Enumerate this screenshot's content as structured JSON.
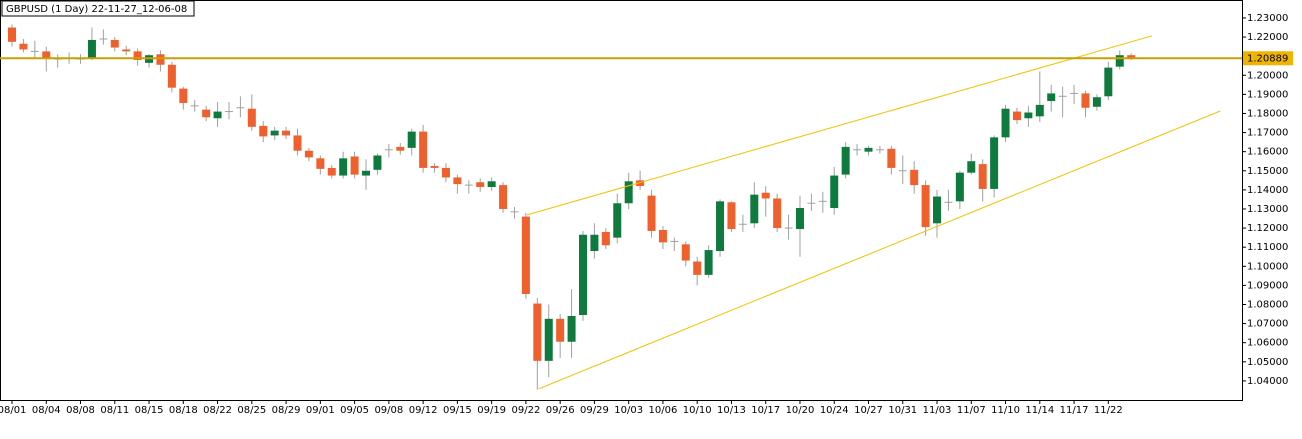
{
  "chart_data": {
    "type": "candlestick",
    "title": "GBPUSD (1 Day) 22-11-27_12-06-08",
    "categories": [
      "08/01",
      null,
      null,
      "08/04",
      null,
      null,
      "08/08",
      null,
      null,
      "08/11",
      null,
      null,
      "08/15",
      null,
      null,
      "08/18",
      null,
      null,
      "08/22",
      null,
      null,
      "08/25",
      null,
      null,
      "08/29",
      null,
      null,
      "09/01",
      null,
      null,
      "09/05",
      null,
      null,
      "09/08",
      null,
      null,
      "09/12",
      null,
      null,
      "09/15",
      null,
      null,
      "09/19",
      null,
      null,
      "09/22",
      null,
      null,
      "09/26",
      null,
      null,
      "09/29",
      null,
      null,
      "10/03",
      null,
      null,
      "10/06",
      null,
      null,
      "10/10",
      null,
      null,
      "10/13",
      null,
      null,
      "10/17",
      null,
      null,
      "10/20",
      null,
      null,
      "10/24",
      null,
      null,
      "10/27",
      null,
      null,
      "10/31",
      null,
      null,
      "11/03",
      null,
      null,
      "11/07",
      null,
      null,
      "11/10",
      null,
      null,
      "11/14",
      null,
      null,
      "11/17",
      null,
      null,
      "11/22",
      null,
      null
    ],
    "open": [
      1.225,
      1.2165,
      1.2125,
      1.2125,
      1.2085,
      1.209,
      1.2085,
      1.2085,
      1.219,
      1.2185,
      1.2135,
      1.2125,
      1.2065,
      1.211,
      1.2055,
      1.193,
      1.184,
      1.182,
      1.1775,
      1.181,
      1.183,
      1.1825,
      1.1735,
      1.1685,
      1.171,
      1.1685,
      1.1605,
      1.1565,
      1.1515,
      1.1475,
      1.1575,
      1.1475,
      1.1505,
      1.161,
      1.1625,
      1.162,
      1.1705,
      1.1525,
      1.1515,
      1.1465,
      1.1425,
      1.144,
      1.1415,
      1.1425,
      1.1285,
      1.126,
      1.0805,
      1.0505,
      1.0725,
      1.0605,
      1.0745,
      1.108,
      1.118,
      1.115,
      1.133,
      1.145,
      1.137,
      1.119,
      1.113,
      1.1115,
      1.1025,
      1.0955,
      1.108,
      1.1335,
      1.122,
      1.1225,
      1.1385,
      1.1355,
      1.12,
      1.1195,
      1.133,
      1.134,
      1.1305,
      1.148,
      1.161,
      1.16,
      1.161,
      1.1615,
      1.15,
      1.1505,
      1.1425,
      1.1225,
      1.1335,
      1.134,
      1.149,
      1.1535,
      1.1405,
      1.1675,
      1.181,
      1.1775,
      1.1785,
      1.1865,
      1.189,
      1.1905,
      1.1905,
      1.1835,
      1.189,
      1.2045,
      1.2105
    ],
    "high": [
      1.2265,
      1.219,
      1.218,
      1.215,
      1.211,
      1.212,
      1.211,
      1.225,
      1.224,
      1.22,
      1.2155,
      1.214,
      1.211,
      1.213,
      1.207,
      1.194,
      1.187,
      1.184,
      1.186,
      1.186,
      1.189,
      1.19,
      1.176,
      1.173,
      1.173,
      1.172,
      1.162,
      1.158,
      1.153,
      1.16,
      1.16,
      1.156,
      1.159,
      1.164,
      1.1645,
      1.172,
      1.174,
      1.154,
      1.154,
      1.148,
      1.145,
      1.146,
      1.1465,
      1.144,
      1.131,
      1.128,
      1.0835,
      1.08,
      1.075,
      1.088,
      1.1185,
      1.1225,
      1.12,
      1.138,
      1.149,
      1.15,
      1.14,
      1.121,
      1.115,
      1.113,
      1.105,
      1.111,
      1.135,
      1.134,
      1.127,
      1.144,
      1.142,
      1.138,
      1.127,
      1.137,
      1.138,
      1.139,
      1.152,
      1.165,
      1.164,
      1.163,
      1.163,
      1.163,
      1.158,
      1.155,
      1.145,
      1.14,
      1.14,
      1.15,
      1.159,
      1.156,
      1.1685,
      1.1845,
      1.183,
      1.184,
      1.202,
      1.195,
      1.194,
      1.195,
      1.192,
      1.19,
      1.207,
      1.213,
      1.2115
    ],
    "low": [
      1.215,
      1.212,
      1.209,
      1.202,
      1.204,
      1.206,
      1.206,
      1.208,
      1.216,
      1.2125,
      1.2105,
      1.205,
      1.204,
      1.202,
      1.191,
      1.182,
      1.181,
      1.176,
      1.173,
      1.177,
      1.178,
      1.171,
      1.165,
      1.166,
      1.1665,
      1.158,
      1.155,
      1.148,
      1.146,
      1.146,
      1.146,
      1.14,
      1.148,
      1.157,
      1.1585,
      1.158,
      1.149,
      1.149,
      1.144,
      1.138,
      1.138,
      1.139,
      1.1395,
      1.128,
      1.125,
      1.083,
      1.0355,
      1.042,
      1.052,
      1.052,
      1.0715,
      1.104,
      1.109,
      1.112,
      1.13,
      1.14,
      1.115,
      1.109,
      1.108,
      1.1,
      1.09,
      1.094,
      1.105,
      1.118,
      1.118,
      1.12,
      1.126,
      1.118,
      1.114,
      1.105,
      1.129,
      1.128,
      1.127,
      1.146,
      1.158,
      1.158,
      1.159,
      1.148,
      1.143,
      1.138,
      1.116,
      1.115,
      1.129,
      1.13,
      1.148,
      1.134,
      1.136,
      1.165,
      1.1745,
      1.173,
      1.1755,
      1.181,
      1.178,
      1.185,
      1.178,
      1.1815,
      1.187,
      1.203,
      1.208
    ],
    "close": [
      1.2175,
      1.2135,
      1.2125,
      1.2085,
      1.2085,
      1.209,
      1.2085,
      1.2185,
      1.219,
      1.2145,
      1.2125,
      1.208,
      1.2105,
      1.2055,
      1.1935,
      1.1855,
      1.184,
      1.178,
      1.181,
      1.181,
      1.183,
      1.173,
      1.168,
      1.171,
      1.1685,
      1.1605,
      1.157,
      1.151,
      1.1475,
      1.1565,
      1.148,
      1.15,
      1.158,
      1.161,
      1.1605,
      1.1705,
      1.1515,
      1.1515,
      1.1465,
      1.143,
      1.1425,
      1.1415,
      1.1445,
      1.13,
      1.1285,
      1.0855,
      1.0505,
      1.0725,
      1.0605,
      1.074,
      1.1165,
      1.1165,
      1.111,
      1.133,
      1.1445,
      1.142,
      1.1185,
      1.1125,
      1.113,
      1.103,
      1.0955,
      1.1085,
      1.134,
      1.1195,
      1.122,
      1.1375,
      1.1355,
      1.12,
      1.12,
      1.1305,
      1.133,
      1.134,
      1.1475,
      1.1625,
      1.161,
      1.162,
      1.161,
      1.1515,
      1.15,
      1.1425,
      1.1205,
      1.1365,
      1.1335,
      1.149,
      1.155,
      1.1405,
      1.1675,
      1.1825,
      1.1765,
      1.1805,
      1.1845,
      1.1905,
      1.189,
      1.1905,
      1.183,
      1.1885,
      1.204,
      1.2105,
      1.2089
    ],
    "up_color": "#0e7a3e",
    "down_color": "#f0602c",
    "ylim": [
      1.03,
      1.2394
    ],
    "yticks": [
      {
        "value": 1.04,
        "label": "1.04000"
      },
      {
        "value": 1.05,
        "label": "1.05000"
      },
      {
        "value": 1.06,
        "label": "1.06000"
      },
      {
        "value": 1.07,
        "label": "1.07000"
      },
      {
        "value": 1.08,
        "label": "1.08000"
      },
      {
        "value": 1.09,
        "label": "1.09000"
      },
      {
        "value": 1.1,
        "label": "1.10000"
      },
      {
        "value": 1.11,
        "label": "1.11000"
      },
      {
        "value": 1.12,
        "label": "1.12000"
      },
      {
        "value": 1.13,
        "label": "1.13000"
      },
      {
        "value": 1.14,
        "label": "1.14000"
      },
      {
        "value": 1.15,
        "label": "1.15000"
      },
      {
        "value": 1.16,
        "label": "1.16000"
      },
      {
        "value": 1.17,
        "label": "1.17000"
      },
      {
        "value": 1.18,
        "label": "1.18000"
      },
      {
        "value": 1.19,
        "label": "1.19000"
      },
      {
        "value": 1.2,
        "label": "1.20000"
      },
      {
        "value": 1.22,
        "label": "1.22000"
      },
      {
        "value": 1.23,
        "label": "1.23000"
      }
    ],
    "price_line": {
      "value": 1.20889,
      "color": "#c8a000"
    },
    "trendlines": [
      {
        "x": [
          45.1,
          99.8
        ],
        "y": [
          1.1269,
          1.2206
        ],
        "color": "#f2c200"
      },
      {
        "x": [
          46.1,
          105.8
        ],
        "y": [
          1.0358,
          1.1813
        ],
        "color": "#f2c200"
      }
    ]
  }
}
